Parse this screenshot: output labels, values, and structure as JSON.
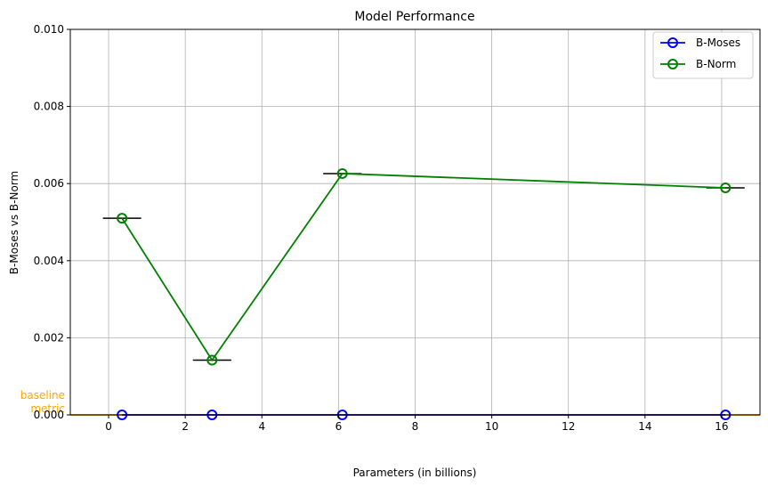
{
  "chart_data": {
    "type": "line",
    "title": "Model Performance",
    "xlabel": "Parameters (in billions)",
    "ylabel": "B-Moses vs B-Norm",
    "xlim": [
      -1,
      17
    ],
    "ylim": [
      0,
      0.01
    ],
    "xticks": [
      0,
      2,
      4,
      6,
      8,
      10,
      12,
      14,
      16
    ],
    "xtick_labels": [
      "0",
      "2",
      "4",
      "6",
      "8",
      "10",
      "12",
      "14",
      "16"
    ],
    "yticks": [
      0,
      0.002,
      0.004,
      0.006,
      0.008,
      0.01
    ],
    "ytick_labels": [
      "0.000",
      "0.002",
      "0.004",
      "0.006",
      "0.008",
      "0.010"
    ],
    "grid": true,
    "legend_position": "top-right",
    "x": [
      0.35,
      2.7,
      6.1,
      16.1
    ],
    "series": [
      {
        "name": "B-Moses",
        "color": "#0000ff",
        "marker": "open-circle",
        "values": [
          0.0,
          0.0,
          0.0,
          0.0
        ]
      },
      {
        "name": "B-Norm",
        "color": "#008000",
        "marker": "open-circle",
        "values": [
          0.0051,
          0.00142,
          0.00626,
          0.00589
        ],
        "error_x": [
          0.5,
          0.5,
          0.5,
          0.5
        ]
      }
    ],
    "baseline": {
      "label_line1": "baseline",
      "label_line2": "metric",
      "value": 0.0,
      "color": "#ffa500"
    }
  }
}
